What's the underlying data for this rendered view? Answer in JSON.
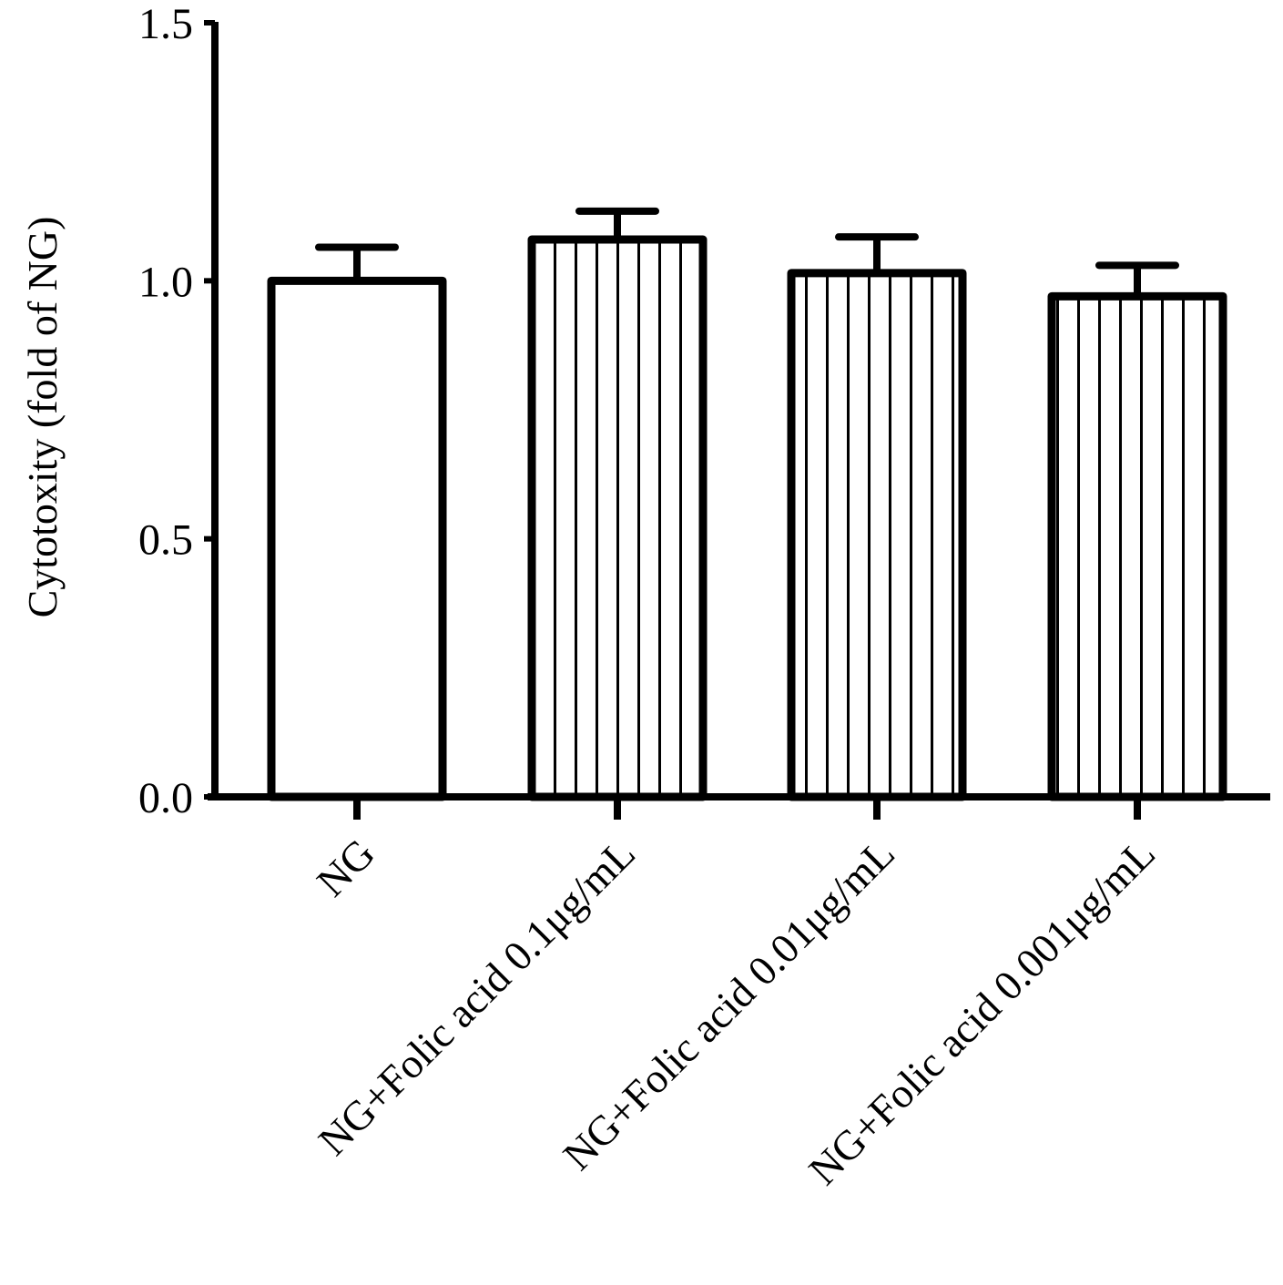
{
  "chart_data": {
    "type": "bar",
    "title": "",
    "xlabel": "",
    "ylabel": "Cytotoxity (fold of NG)",
    "ylim": [
      0,
      1.5
    ],
    "yticks": [
      "0.0",
      "0.5",
      "1.0",
      "1.5"
    ],
    "grid": false,
    "legend": "none",
    "categories": [
      "NG",
      "NG+Folic acid 0.1μg/mL",
      "NG+Folic acid 0.01μg/mL",
      "NG+Folic acid 0.001μg/mL"
    ],
    "values": [
      1.0,
      1.08,
      1.015,
      0.97
    ],
    "errors": [
      0.065,
      0.055,
      0.07,
      0.06
    ],
    "fills": [
      "solid",
      "vertical-stripes",
      "vertical-stripes",
      "vertical-stripes"
    ],
    "colors": {
      "stroke": "#000000",
      "fill": "#ffffff"
    }
  }
}
